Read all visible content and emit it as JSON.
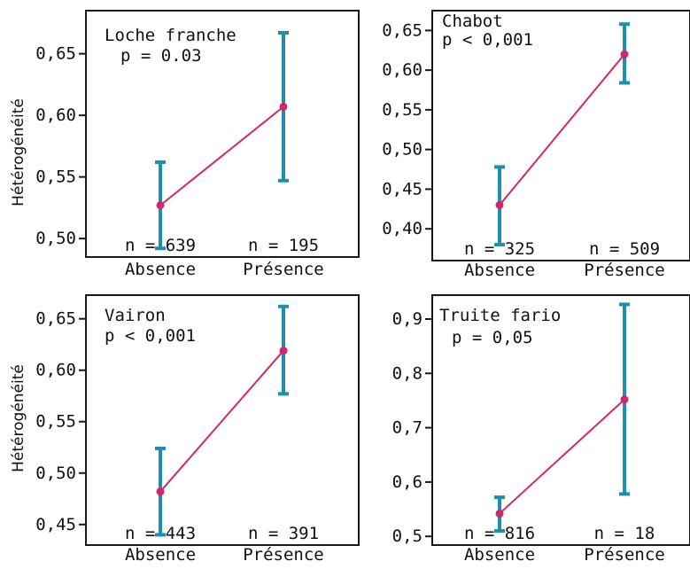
{
  "colors": {
    "background": "#ffffff",
    "frame": "#1a1a1a",
    "error_bar": "#1f8fb0",
    "line": "#d6266b",
    "point": "#d6266b",
    "text": "#111111"
  },
  "chart_data": [
    {
      "type": "line",
      "panel": "top-left",
      "annotation_lines": [
        "Loche franche",
        "p = 0.03"
      ],
      "ylabel": "Hétérogénéité",
      "categories": [
        "Absence",
        "Présence"
      ],
      "n_labels": [
        "n = 639",
        "n = 195"
      ],
      "yticks": [
        0.5,
        0.55,
        0.6,
        0.65
      ],
      "ytick_labels": [
        "0,50",
        "0,55",
        "0,60",
        "0,65"
      ],
      "ylim": [
        0.485,
        0.685
      ],
      "values": [
        0.527,
        0.607
      ],
      "err_low": [
        0.492,
        0.547
      ],
      "err_high": [
        0.562,
        0.667
      ],
      "grid": false
    },
    {
      "type": "line",
      "panel": "top-right",
      "annotation_lines": [
        "Chabot",
        "p < 0,001"
      ],
      "ylabel": "",
      "categories": [
        "Absence",
        "Présence"
      ],
      "n_labels": [
        "n = 325",
        "n = 509"
      ],
      "yticks": [
        0.4,
        0.45,
        0.5,
        0.55,
        0.6,
        0.65
      ],
      "ytick_labels": [
        "0,40",
        "0,45",
        "0,50",
        "0,55",
        "0,60",
        "0,65"
      ],
      "ylim": [
        0.36,
        0.675
      ],
      "values": [
        0.43,
        0.62
      ],
      "err_low": [
        0.38,
        0.584
      ],
      "err_high": [
        0.478,
        0.658
      ],
      "grid": false
    },
    {
      "type": "line",
      "panel": "bottom-left",
      "annotation_lines": [
        "Vairon",
        "p < 0,001"
      ],
      "ylabel": "Hétérogénéité",
      "categories": [
        "Absence",
        "Présence"
      ],
      "n_labels": [
        "n = 443",
        "n = 391"
      ],
      "yticks": [
        0.45,
        0.5,
        0.55,
        0.6,
        0.65
      ],
      "ytick_labels": [
        "0,45",
        "0,50",
        "0,55",
        "0,60",
        "0,65"
      ],
      "ylim": [
        0.43,
        0.673
      ],
      "values": [
        0.482,
        0.619
      ],
      "err_low": [
        0.44,
        0.577
      ],
      "err_high": [
        0.524,
        0.662
      ],
      "grid": false
    },
    {
      "type": "line",
      "panel": "bottom-right",
      "annotation_lines": [
        "Truite fario",
        "p = 0,05"
      ],
      "ylabel": "",
      "categories": [
        "Absence",
        "Présence"
      ],
      "n_labels": [
        "n = 816",
        "n = 18"
      ],
      "yticks": [
        0.5,
        0.6,
        0.7,
        0.8,
        0.9
      ],
      "ytick_labels": [
        "0,5",
        "0,6",
        "0,7",
        "0,8",
        "0,9"
      ],
      "ylim": [
        0.484,
        0.944
      ],
      "values": [
        0.542,
        0.752
      ],
      "err_low": [
        0.51,
        0.578
      ],
      "err_high": [
        0.572,
        0.927
      ],
      "grid": false
    }
  ]
}
